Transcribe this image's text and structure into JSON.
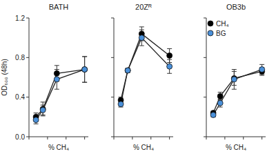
{
  "chart_data": [
    {
      "type": "line",
      "title": "BATH",
      "x_label": "% CH₄",
      "y_label": "OD₆₀₀ (48h)",
      "x": [
        3.75,
        7.5,
        15,
        30
      ],
      "series": [
        {
          "name": "CH₄",
          "color": "#000000",
          "marker": "circle",
          "values": [
            0.2,
            0.28,
            0.64,
            0.68
          ],
          "errors": [
            0.04,
            0.07,
            0.08,
            0.13
          ]
        },
        {
          "name": "BG",
          "color": "#4a90d9",
          "marker": "circle",
          "values": [
            0.17,
            0.27,
            0.58,
            0.68
          ],
          "errors": [
            0.04,
            0.05,
            0.1,
            0.13
          ]
        }
      ],
      "xlim": [
        0,
        32
      ],
      "xticks": [
        0,
        10,
        20,
        30
      ],
      "ylim": [
        0,
        1.2
      ],
      "yticks": [
        {
          "value": 0,
          "label": "0.0"
        },
        0.4,
        0.8,
        1.2
      ],
      "tick_labels": "y"
    },
    {
      "type": "line",
      "title": "20Zᴿ",
      "x_label": "% CH₄",
      "x": [
        3.75,
        7.5,
        15,
        30
      ],
      "series": [
        {
          "name": "CH₄",
          "color": "#000000",
          "marker": "circle",
          "values": [
            0.37,
            0.67,
            1.04,
            0.82
          ],
          "errors": [
            0.03,
            0.02,
            0.07,
            0.07
          ]
        },
        {
          "name": "BG",
          "color": "#4a90d9",
          "marker": "circle",
          "values": [
            0.33,
            0.67,
            1.0,
            0.71
          ],
          "errors": [
            0.03,
            0.02,
            0.08,
            0.07
          ]
        }
      ],
      "xlim": [
        0,
        32
      ],
      "xticks": [
        0,
        10,
        20,
        30
      ],
      "ylim": [
        0,
        1.2
      ],
      "yticks": [
        0,
        0.4,
        0.8,
        1.2
      ],
      "tick_labels": false
    },
    {
      "type": "line",
      "title": "OB3b",
      "x_label": "% CH₄",
      "x": [
        3.75,
        7.5,
        15,
        30
      ],
      "series": [
        {
          "name": "CH₄",
          "color": "#000000",
          "marker": "circle",
          "values": [
            0.24,
            0.41,
            0.59,
            0.66
          ],
          "errors": [
            0.02,
            0.04,
            0.07,
            0.04
          ]
        },
        {
          "name": "BG",
          "color": "#4a90d9",
          "marker": "circle",
          "values": [
            0.22,
            0.34,
            0.58,
            0.68
          ],
          "errors": [
            0.02,
            0.04,
            0.1,
            0.05
          ]
        }
      ],
      "xlim": [
        0,
        32
      ],
      "xticks": [
        0,
        10,
        20,
        30
      ],
      "ylim": [
        0,
        1.2
      ],
      "yticks": [
        0,
        0.4,
        0.8,
        1.2
      ],
      "tick_labels": false,
      "legend": "upper left"
    }
  ]
}
